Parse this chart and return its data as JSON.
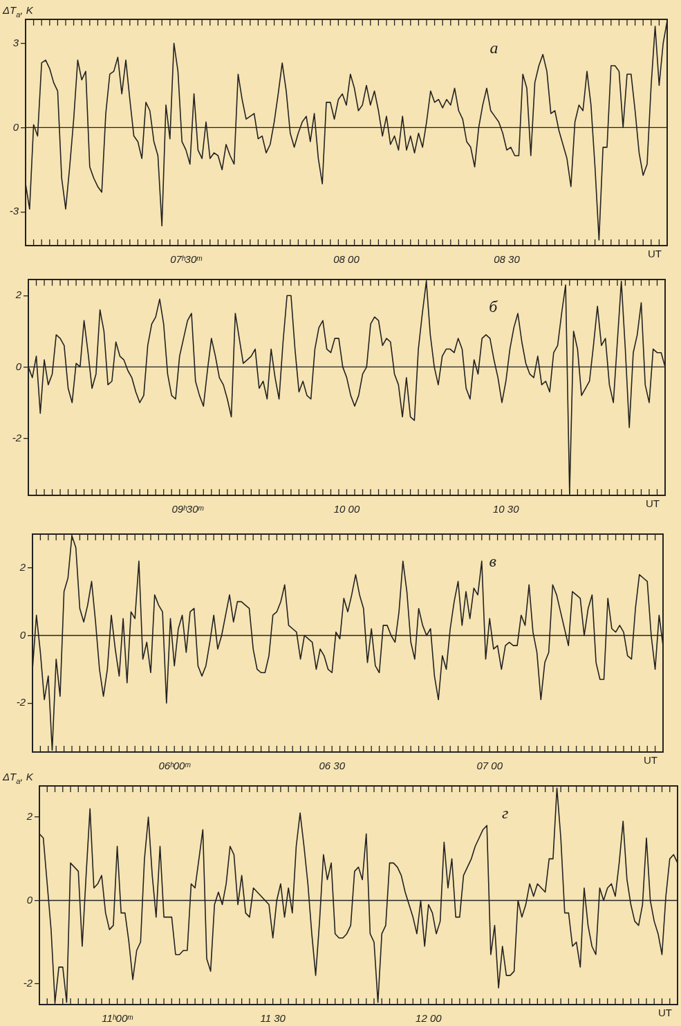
{
  "chart_data": [
    {
      "type": "line",
      "title": "а",
      "ylabel": "ΔT$_{a}$, K",
      "xlabel": "UT",
      "color": "#222222",
      "ylim": [
        -4.2,
        3.85
      ],
      "yticks": [
        -3,
        0,
        3
      ],
      "ref_lines": [
        {
          "axis": "y",
          "value": 0
        }
      ],
      "categories": [
        null,
        null,
        null,
        null,
        null,
        null,
        null,
        null,
        null,
        null,
        null,
        null,
        null,
        null,
        null,
        null,
        null,
        null,
        null,
        null,
        null,
        null,
        null,
        null,
        null,
        null,
        null,
        null,
        null,
        null,
        null,
        null,
        null,
        null,
        null,
        null,
        null,
        null,
        null,
        null,
        "07ʰ30ᵐ",
        null,
        null,
        null,
        null,
        null,
        null,
        null,
        null,
        null,
        null,
        null,
        null,
        null,
        null,
        null,
        null,
        null,
        null,
        null,
        null,
        null,
        null,
        null,
        null,
        null,
        null,
        null,
        null,
        null,
        null,
        null,
        null,
        null,
        null,
        null,
        null,
        null,
        null,
        null,
        "08 00",
        null,
        null,
        null,
        null,
        null,
        null,
        null,
        null,
        null,
        null,
        null,
        null,
        null,
        null,
        null,
        null,
        null,
        null,
        null,
        null,
        null,
        null,
        null,
        null,
        null,
        null,
        null,
        null,
        null,
        null,
        null,
        null,
        null,
        null,
        null,
        null,
        null,
        null,
        null,
        "08 30",
        null,
        null,
        null,
        null,
        null,
        null,
        null,
        null,
        null,
        null,
        null,
        null,
        null,
        null,
        null,
        null,
        null,
        null,
        null,
        null,
        null,
        null,
        null,
        null,
        null,
        null,
        null,
        null,
        null,
        null,
        null,
        null,
        null,
        null,
        null,
        null,
        null,
        null,
        null,
        null
      ],
      "values": [
        -2.0,
        -2.9,
        0.1,
        -0.3,
        2.3,
        2.4,
        2.1,
        1.6,
        1.3,
        -1.8,
        -2.9,
        -1.4,
        0.3,
        2.4,
        1.7,
        2.0,
        -1.4,
        -1.8,
        -2.1,
        -2.3,
        0.5,
        1.9,
        2.0,
        2.5,
        1.2,
        2.4,
        1.0,
        -0.3,
        -0.5,
        -1.1,
        0.9,
        0.6,
        -0.5,
        -1.0,
        -3.5,
        0.8,
        -0.4,
        3.0,
        2.0,
        -0.5,
        -0.8,
        -1.3,
        1.2,
        -0.8,
        -1.1,
        0.2,
        -1.1,
        -0.9,
        -1.0,
        -1.5,
        -0.6,
        -1.0,
        -1.3,
        1.9,
        1.0,
        0.3,
        0.4,
        0.5,
        -0.4,
        -0.3,
        -0.9,
        -0.6,
        0.2,
        1.2,
        2.3,
        1.3,
        -0.2,
        -0.7,
        -0.2,
        0.2,
        0.4,
        -0.5,
        0.5,
        -1.1,
        -2.0,
        0.9,
        0.9,
        0.3,
        1.0,
        1.2,
        0.8,
        1.9,
        1.4,
        0.6,
        0.8,
        1.5,
        0.8,
        1.3,
        0.6,
        -0.3,
        0.4,
        -0.6,
        -0.3,
        -0.8,
        0.4,
        -0.8,
        -0.3,
        -0.9,
        -0.2,
        -0.7,
        0.2,
        1.3,
        0.9,
        1.0,
        0.7,
        1.0,
        0.8,
        1.4,
        0.6,
        0.3,
        -0.5,
        -0.7,
        -1.4,
        0.0,
        0.8,
        1.4,
        0.6,
        0.4,
        0.2,
        -0.2,
        -0.8,
        -0.7,
        -1.0,
        -1.0,
        1.9,
        1.4,
        -1.0,
        1.6,
        2.2,
        2.6,
        2.0,
        0.5,
        0.6,
        -0.1,
        -0.6,
        -1.1,
        -2.1,
        0.2,
        0.8,
        0.6,
        2.0,
        0.8,
        -1.4,
        -4.0,
        -0.7,
        -0.7,
        2.2,
        2.2,
        2.0,
        0.0,
        1.9,
        1.9,
        0.6,
        -0.9,
        -1.7,
        -1.3,
        1.5,
        3.6,
        1.5,
        3.0,
        3.8
      ]
    },
    {
      "type": "line",
      "title": "б",
      "xlabel": "UT",
      "color": "#222222",
      "ylim": [
        -3.6,
        2.45
      ],
      "yticks": [
        -2,
        0,
        2
      ],
      "ref_lines": [
        {
          "axis": "y",
          "value": 0
        }
      ],
      "categories": [
        null,
        null,
        null,
        null,
        null,
        null,
        null,
        null,
        null,
        null,
        null,
        null,
        null,
        null,
        null,
        null,
        null,
        null,
        null,
        null,
        null,
        null,
        null,
        null,
        null,
        null,
        null,
        null,
        null,
        null,
        null,
        null,
        null,
        null,
        null,
        null,
        null,
        null,
        null,
        null,
        "09ʰ30ᵐ",
        null,
        null,
        null,
        null,
        null,
        null,
        null,
        null,
        null,
        null,
        null,
        null,
        null,
        null,
        null,
        null,
        null,
        null,
        null,
        null,
        null,
        null,
        null,
        null,
        null,
        null,
        null,
        null,
        null,
        null,
        null,
        null,
        null,
        null,
        null,
        null,
        null,
        null,
        null,
        "10 00",
        null,
        null,
        null,
        null,
        null,
        null,
        null,
        null,
        null,
        null,
        null,
        null,
        null,
        null,
        null,
        null,
        null,
        null,
        null,
        null,
        null,
        null,
        null,
        null,
        null,
        null,
        null,
        null,
        null,
        null,
        null,
        null,
        null,
        null,
        null,
        null,
        null,
        null,
        null,
        "10 30",
        null,
        null,
        null,
        null,
        null,
        null,
        null,
        null,
        null,
        null,
        null,
        null,
        null,
        null,
        null,
        null,
        null,
        null,
        null,
        null,
        null,
        null,
        null,
        null,
        null,
        null,
        null,
        null,
        null,
        null,
        null,
        null,
        null,
        null,
        null,
        null,
        null,
        null,
        null,
        null
      ],
      "values": [
        0.0,
        -0.3,
        0.3,
        -1.3,
        0.2,
        -0.5,
        -0.2,
        0.9,
        0.8,
        0.6,
        -0.6,
        -1.0,
        0.1,
        0.0,
        1.3,
        0.4,
        -0.6,
        -0.2,
        1.6,
        1.0,
        -0.5,
        -0.4,
        0.7,
        0.3,
        0.2,
        -0.1,
        -0.3,
        -0.7,
        -1.0,
        -0.8,
        0.6,
        1.2,
        1.4,
        1.9,
        1.2,
        -0.2,
        -0.8,
        -0.9,
        0.3,
        0.8,
        1.3,
        1.5,
        -0.4,
        -0.8,
        -1.1,
        -0.1,
        0.8,
        0.3,
        -0.3,
        -0.5,
        -0.9,
        -1.4,
        1.5,
        0.8,
        0.1,
        0.2,
        0.3,
        0.5,
        -0.6,
        -0.4,
        -0.9,
        0.5,
        -0.3,
        -0.9,
        0.7,
        2.0,
        2.0,
        0.5,
        -0.7,
        -0.4,
        -0.8,
        -0.9,
        0.5,
        1.1,
        1.3,
        0.5,
        0.4,
        0.8,
        0.8,
        0.0,
        -0.3,
        -0.8,
        -1.1,
        -0.8,
        -0.2,
        0.0,
        1.2,
        1.4,
        1.3,
        0.6,
        0.8,
        0.7,
        -0.2,
        -0.5,
        -1.4,
        -0.3,
        -1.4,
        -1.5,
        0.5,
        1.5,
        2.4,
        0.9,
        0.0,
        -0.5,
        0.3,
        0.5,
        0.5,
        0.4,
        0.8,
        0.5,
        -0.6,
        -0.9,
        0.2,
        -0.2,
        0.8,
        0.9,
        0.8,
        0.2,
        -0.3,
        -1.0,
        -0.4,
        0.5,
        1.1,
        1.5,
        0.7,
        0.1,
        -0.2,
        -0.3,
        0.3,
        -0.5,
        -0.4,
        -0.7,
        0.4,
        0.6,
        1.5,
        2.3,
        -3.55,
        1.0,
        0.5,
        -0.8,
        -0.6,
        -0.4,
        0.6,
        1.7,
        0.6,
        0.8,
        -0.5,
        -1.0,
        0.7,
        2.4,
        0.5,
        -1.7,
        0.4,
        0.9,
        1.8,
        -0.5,
        -1.0,
        0.5,
        0.4,
        0.4,
        0.0
      ]
    },
    {
      "type": "line",
      "title": "в",
      "xlabel": "UT",
      "color": "#222222",
      "ylim": [
        -3.45,
        3.0
      ],
      "yticks": [
        -2,
        0,
        2
      ],
      "ref_lines": [
        {
          "axis": "y",
          "value": 0
        }
      ],
      "categories": [
        null,
        null,
        null,
        null,
        null,
        null,
        null,
        null,
        null,
        null,
        null,
        null,
        null,
        null,
        null,
        null,
        null,
        null,
        null,
        null,
        null,
        null,
        null,
        null,
        null,
        null,
        null,
        null,
        null,
        null,
        null,
        null,
        null,
        null,
        null,
        null,
        "06ʰ00ᵐ",
        null,
        null,
        null,
        null,
        null,
        null,
        null,
        null,
        null,
        null,
        null,
        null,
        null,
        null,
        null,
        null,
        null,
        null,
        null,
        null,
        null,
        null,
        null,
        null,
        null,
        null,
        null,
        null,
        null,
        null,
        null,
        null,
        null,
        null,
        null,
        null,
        null,
        null,
        null,
        "06 30",
        null,
        null,
        null,
        null,
        null,
        null,
        null,
        null,
        null,
        null,
        null,
        null,
        null,
        null,
        null,
        null,
        null,
        null,
        null,
        null,
        null,
        null,
        null,
        null,
        null,
        null,
        null,
        null,
        null,
        null,
        null,
        null,
        null,
        null,
        null,
        null,
        null,
        null,
        null,
        "07 00",
        null,
        null,
        null,
        null,
        null,
        null,
        null,
        null,
        null,
        null,
        null,
        null,
        null,
        null,
        null,
        null,
        null,
        null,
        null,
        null,
        null,
        null,
        null,
        null,
        null,
        null,
        null,
        null,
        null,
        null,
        null,
        null,
        null,
        null,
        null,
        null,
        null,
        null,
        null,
        null,
        null,
        null,
        null,
        null
      ],
      "values": [
        -1.0,
        0.6,
        -0.5,
        -1.9,
        -1.2,
        -3.4,
        -0.7,
        -1.8,
        1.3,
        1.7,
        2.95,
        2.6,
        0.8,
        0.4,
        0.9,
        1.6,
        0.4,
        -1.0,
        -1.8,
        -1.0,
        0.6,
        -0.4,
        -1.2,
        0.5,
        -1.4,
        0.7,
        0.5,
        2.2,
        -0.7,
        -0.2,
        -1.1,
        1.2,
        0.9,
        0.7,
        -2.0,
        0.5,
        -0.9,
        0.2,
        0.6,
        -0.5,
        0.7,
        0.8,
        -0.9,
        -1.2,
        -0.9,
        -0.2,
        0.6,
        -0.4,
        0.0,
        0.6,
        1.2,
        0.4,
        1.0,
        1.0,
        0.9,
        0.8,
        -0.4,
        -1.0,
        -1.1,
        -1.1,
        -0.6,
        0.6,
        0.7,
        1.0,
        1.5,
        0.3,
        0.2,
        0.1,
        -0.7,
        0.0,
        -0.1,
        -0.2,
        -1.0,
        -0.4,
        -0.6,
        -1.0,
        -1.1,
        0.1,
        -0.1,
        1.1,
        0.7,
        1.2,
        1.8,
        1.2,
        0.8,
        -0.8,
        0.2,
        -0.9,
        -1.1,
        0.3,
        0.3,
        0.0,
        -0.2,
        0.7,
        2.2,
        1.3,
        -0.2,
        -0.7,
        0.8,
        0.3,
        0.0,
        0.2,
        -1.2,
        -1.9,
        -0.6,
        -1.0,
        0.2,
        1.0,
        1.6,
        0.3,
        1.3,
        0.5,
        1.4,
        1.2,
        2.2,
        -0.7,
        0.5,
        -0.4,
        -0.3,
        -1.0,
        -0.3,
        -0.2,
        -0.3,
        -0.3,
        0.6,
        0.3,
        1.5,
        0.1,
        -0.5,
        -1.9,
        -0.8,
        -0.5,
        1.5,
        1.2,
        0.7,
        0.2,
        -0.3,
        1.3,
        1.2,
        1.1,
        0.0,
        0.8,
        1.2,
        -0.8,
        -1.3,
        -1.3,
        1.1,
        0.2,
        0.1,
        0.3,
        0.1,
        -0.6,
        -0.7,
        0.8,
        1.8,
        1.7,
        1.6,
        0.0,
        -1.0,
        0.6,
        -0.3
      ]
    },
    {
      "type": "line",
      "title": "г",
      "ylabel": "ΔT$_{a}$, K",
      "xlabel": "UT",
      "color": "#222222",
      "ylim": [
        -2.5,
        2.75
      ],
      "yticks": [
        -2,
        0,
        2
      ],
      "ref_lines": [
        {
          "axis": "y",
          "value": 0
        }
      ],
      "categories": [
        null,
        null,
        null,
        null,
        null,
        null,
        null,
        null,
        null,
        null,
        null,
        null,
        null,
        null,
        null,
        null,
        null,
        null,
        null,
        null,
        "11ʰ00ᵐ",
        null,
        null,
        null,
        null,
        null,
        null,
        null,
        null,
        null,
        null,
        null,
        null,
        null,
        null,
        null,
        null,
        null,
        null,
        null,
        null,
        null,
        null,
        null,
        null,
        null,
        null,
        null,
        null,
        null,
        null,
        null,
        null,
        null,
        null,
        null,
        null,
        null,
        null,
        null,
        "11 30",
        null,
        null,
        null,
        null,
        null,
        null,
        null,
        null,
        null,
        null,
        null,
        null,
        null,
        null,
        null,
        null,
        null,
        null,
        null,
        null,
        null,
        null,
        null,
        null,
        null,
        null,
        null,
        null,
        null,
        null,
        null,
        null,
        null,
        null,
        null,
        null,
        null,
        null,
        null,
        "12 00",
        null,
        null,
        null,
        null,
        null,
        null,
        null,
        null,
        null,
        null,
        null,
        null,
        null,
        null,
        null,
        null,
        null,
        null,
        null,
        null,
        null,
        null,
        null,
        null,
        null,
        null,
        null,
        null,
        null,
        null,
        null,
        null,
        null,
        null,
        null,
        null,
        null,
        null,
        null,
        null,
        null,
        null,
        null,
        null,
        null,
        null,
        null,
        null,
        null,
        null,
        null,
        null,
        null,
        null,
        null,
        null,
        null,
        null,
        null,
        null,
        null,
        null,
        null,
        null
      ],
      "values": [
        1.6,
        1.5,
        0.4,
        -0.7,
        -2.45,
        -1.6,
        -1.6,
        -2.45,
        0.9,
        0.8,
        0.7,
        -1.1,
        0.6,
        2.2,
        0.3,
        0.4,
        0.6,
        -0.3,
        -0.7,
        -0.6,
        1.3,
        -0.3,
        -0.3,
        -1.0,
        -1.9,
        -1.2,
        -1.0,
        1.0,
        2.0,
        0.6,
        -0.4,
        1.3,
        -0.4,
        -0.4,
        -0.4,
        -1.3,
        -1.3,
        -1.2,
        -1.2,
        0.4,
        0.3,
        1.0,
        1.7,
        -1.4,
        -1.7,
        -0.1,
        0.2,
        -0.1,
        0.4,
        1.3,
        1.1,
        -0.1,
        0.6,
        -0.3,
        -0.4,
        0.3,
        0.2,
        0.1,
        0.0,
        -0.1,
        -0.9,
        0.0,
        0.4,
        -0.4,
        0.3,
        -0.3,
        1.3,
        2.1,
        1.3,
        0.4,
        -0.8,
        -1.8,
        -0.5,
        1.1,
        0.5,
        0.9,
        -0.8,
        -0.9,
        -0.9,
        -0.8,
        -0.6,
        0.7,
        0.8,
        0.5,
        1.6,
        -0.8,
        -1.0,
        -2.45,
        -0.8,
        -0.6,
        0.9,
        0.9,
        0.8,
        0.6,
        0.2,
        -0.1,
        -0.4,
        -0.8,
        0.0,
        -1.1,
        -0.1,
        -0.3,
        -0.8,
        -0.5,
        1.4,
        0.3,
        1.0,
        -0.4,
        -0.4,
        0.6,
        0.8,
        1.0,
        1.3,
        1.5,
        1.7,
        1.8,
        -1.3,
        -0.6,
        -2.1,
        -1.1,
        -1.8,
        -1.8,
        -1.7,
        0.0,
        -0.4,
        -0.1,
        0.4,
        0.1,
        0.4,
        0.3,
        0.2,
        1.0,
        1.0,
        2.7,
        1.5,
        -0.3,
        -0.3,
        -1.1,
        -1.0,
        -1.6,
        0.3,
        -0.6,
        -1.1,
        -1.3,
        0.3,
        0.0,
        0.3,
        0.4,
        0.1,
        0.9,
        1.9,
        0.5,
        -0.1,
        -0.5,
        -0.6,
        -0.1,
        1.5,
        0.0,
        -0.5,
        -0.8,
        -1.3,
        0.1,
        1.0,
        1.1,
        0.9
      ]
    }
  ]
}
